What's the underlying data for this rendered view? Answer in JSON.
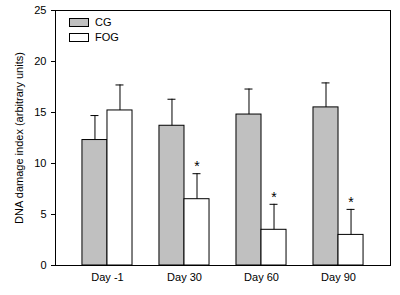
{
  "chart_data": {
    "type": "bar",
    "y_label": "DNA damage index (arbitrary units)",
    "categories": [
      "Day -1",
      "Day 30",
      "Day 60",
      "Day 90"
    ],
    "series": [
      {
        "name": "CG",
        "color": "#c0c0c0",
        "values": [
          12.3,
          13.7,
          14.8,
          15.5
        ],
        "errors": [
          2.4,
          2.6,
          2.5,
          2.4
        ]
      },
      {
        "name": "FOG",
        "color": "#ffffff",
        "values": [
          15.2,
          6.5,
          3.5,
          3.0
        ],
        "errors": [
          2.5,
          2.5,
          2.5,
          2.5
        ],
        "annotations": [
          null,
          "*",
          "*",
          "*"
        ]
      }
    ],
    "ylim": [
      0,
      25
    ],
    "yticks": [
      0,
      5,
      10,
      15,
      20,
      25
    ],
    "grid": false,
    "legend": "upper left"
  }
}
